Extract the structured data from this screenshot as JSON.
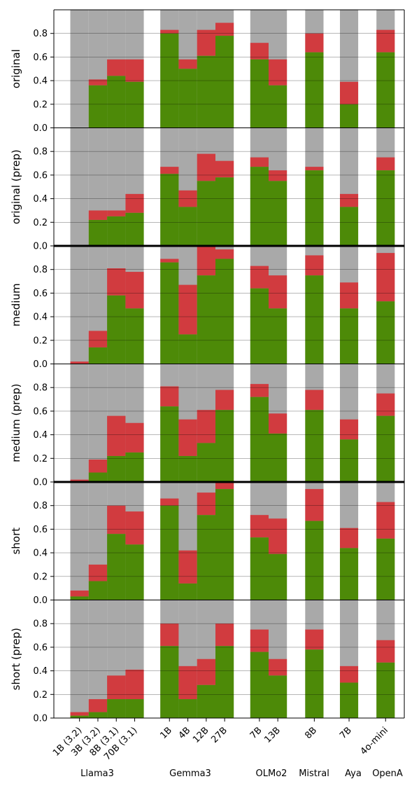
{
  "chart_data": {
    "type": "bar",
    "stacked": true,
    "grid": "horizontal",
    "colors": {
      "correct": "#4d8a08",
      "wrong": "#d13b3f",
      "background": "#a9a9a9"
    },
    "models": [
      "1B (3.2)",
      "3B (3.2)",
      "8B (3.1)",
      "70B (3.1)",
      "1B",
      "4B",
      "12B",
      "27B",
      "7B",
      "13B",
      "8B",
      "7B",
      "4o-mini"
    ],
    "families": [
      "Llama3",
      "Gemma3",
      "OLMo2",
      "Mistral",
      "Aya",
      "OpenA"
    ],
    "ylim": [
      0,
      1.0
    ],
    "yticks": [
      "0.0",
      "0.2",
      "0.4",
      "0.6",
      "0.8"
    ],
    "panels": [
      {
        "ylabel": "original",
        "green": [
          0.0,
          0.36,
          0.44,
          0.39,
          0.8,
          0.5,
          0.61,
          0.78,
          0.58,
          0.36,
          0.64,
          0.2,
          0.64
        ],
        "total": [
          0.0,
          0.41,
          0.58,
          0.58,
          0.83,
          0.58,
          0.83,
          0.89,
          0.72,
          0.58,
          0.8,
          0.39,
          0.83
        ]
      },
      {
        "ylabel": "original (prep)",
        "green": [
          0.0,
          0.22,
          0.25,
          0.28,
          0.61,
          0.33,
          0.55,
          0.58,
          0.67,
          0.55,
          0.64,
          0.33,
          0.64
        ],
        "total": [
          0.0,
          0.3,
          0.3,
          0.44,
          0.67,
          0.47,
          0.78,
          0.72,
          0.75,
          0.64,
          0.67,
          0.44,
          0.75
        ]
      },
      {
        "ylabel": "medium",
        "green": [
          0.0,
          0.14,
          0.58,
          0.47,
          0.86,
          0.25,
          0.75,
          0.89,
          0.64,
          0.47,
          0.75,
          0.47,
          0.53
        ],
        "total": [
          0.02,
          0.28,
          0.81,
          0.78,
          0.89,
          0.67,
          1.0,
          0.97,
          0.83,
          0.75,
          0.92,
          0.69,
          0.94
        ]
      },
      {
        "ylabel": "medium (prep)",
        "green": [
          0.0,
          0.08,
          0.22,
          0.25,
          0.64,
          0.22,
          0.33,
          0.61,
          0.72,
          0.41,
          0.61,
          0.36,
          0.56
        ],
        "total": [
          0.02,
          0.19,
          0.56,
          0.5,
          0.81,
          0.53,
          0.61,
          0.78,
          0.83,
          0.58,
          0.78,
          0.53,
          0.75
        ]
      },
      {
        "ylabel": "short",
        "green": [
          0.03,
          0.16,
          0.56,
          0.47,
          0.8,
          0.14,
          0.72,
          0.94,
          0.53,
          0.39,
          0.67,
          0.44,
          0.52
        ],
        "total": [
          0.08,
          0.3,
          0.8,
          0.75,
          0.86,
          0.42,
          0.91,
          1.0,
          0.72,
          0.69,
          0.94,
          0.61,
          0.83
        ]
      },
      {
        "ylabel": "short (prep)",
        "green": [
          0.02,
          0.05,
          0.16,
          0.16,
          0.61,
          0.16,
          0.28,
          0.61,
          0.56,
          0.36,
          0.58,
          0.3,
          0.47
        ],
        "total": [
          0.05,
          0.16,
          0.36,
          0.41,
          0.8,
          0.44,
          0.5,
          0.8,
          0.75,
          0.5,
          0.75,
          0.44,
          0.66
        ]
      }
    ]
  }
}
